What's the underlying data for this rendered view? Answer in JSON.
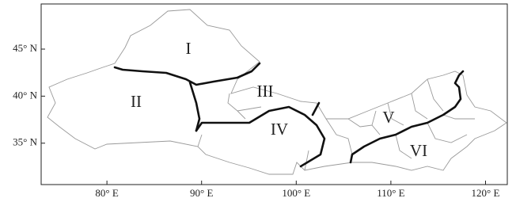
{
  "map": {
    "regions": [
      {
        "label": "I"
      },
      {
        "label": "II"
      },
      {
        "label": "III"
      },
      {
        "label": "IV"
      },
      {
        "label": "V"
      },
      {
        "label": "VI"
      }
    ],
    "xticks": [
      {
        "value": 80,
        "label": "80° E"
      },
      {
        "value": 90,
        "label": "90° E"
      },
      {
        "value": 100,
        "label": "100° E"
      },
      {
        "value": 110,
        "label": "110° E"
      },
      {
        "value": 120,
        "label": "120° E"
      }
    ],
    "yticks": [
      {
        "value": 45,
        "label": "45° N"
      },
      {
        "value": 40,
        "label": "40° N"
      },
      {
        "value": 35,
        "label": "35° N"
      }
    ],
    "xlim": [
      73.05,
      122.3
    ],
    "ylim": [
      30.6,
      49.8
    ]
  }
}
